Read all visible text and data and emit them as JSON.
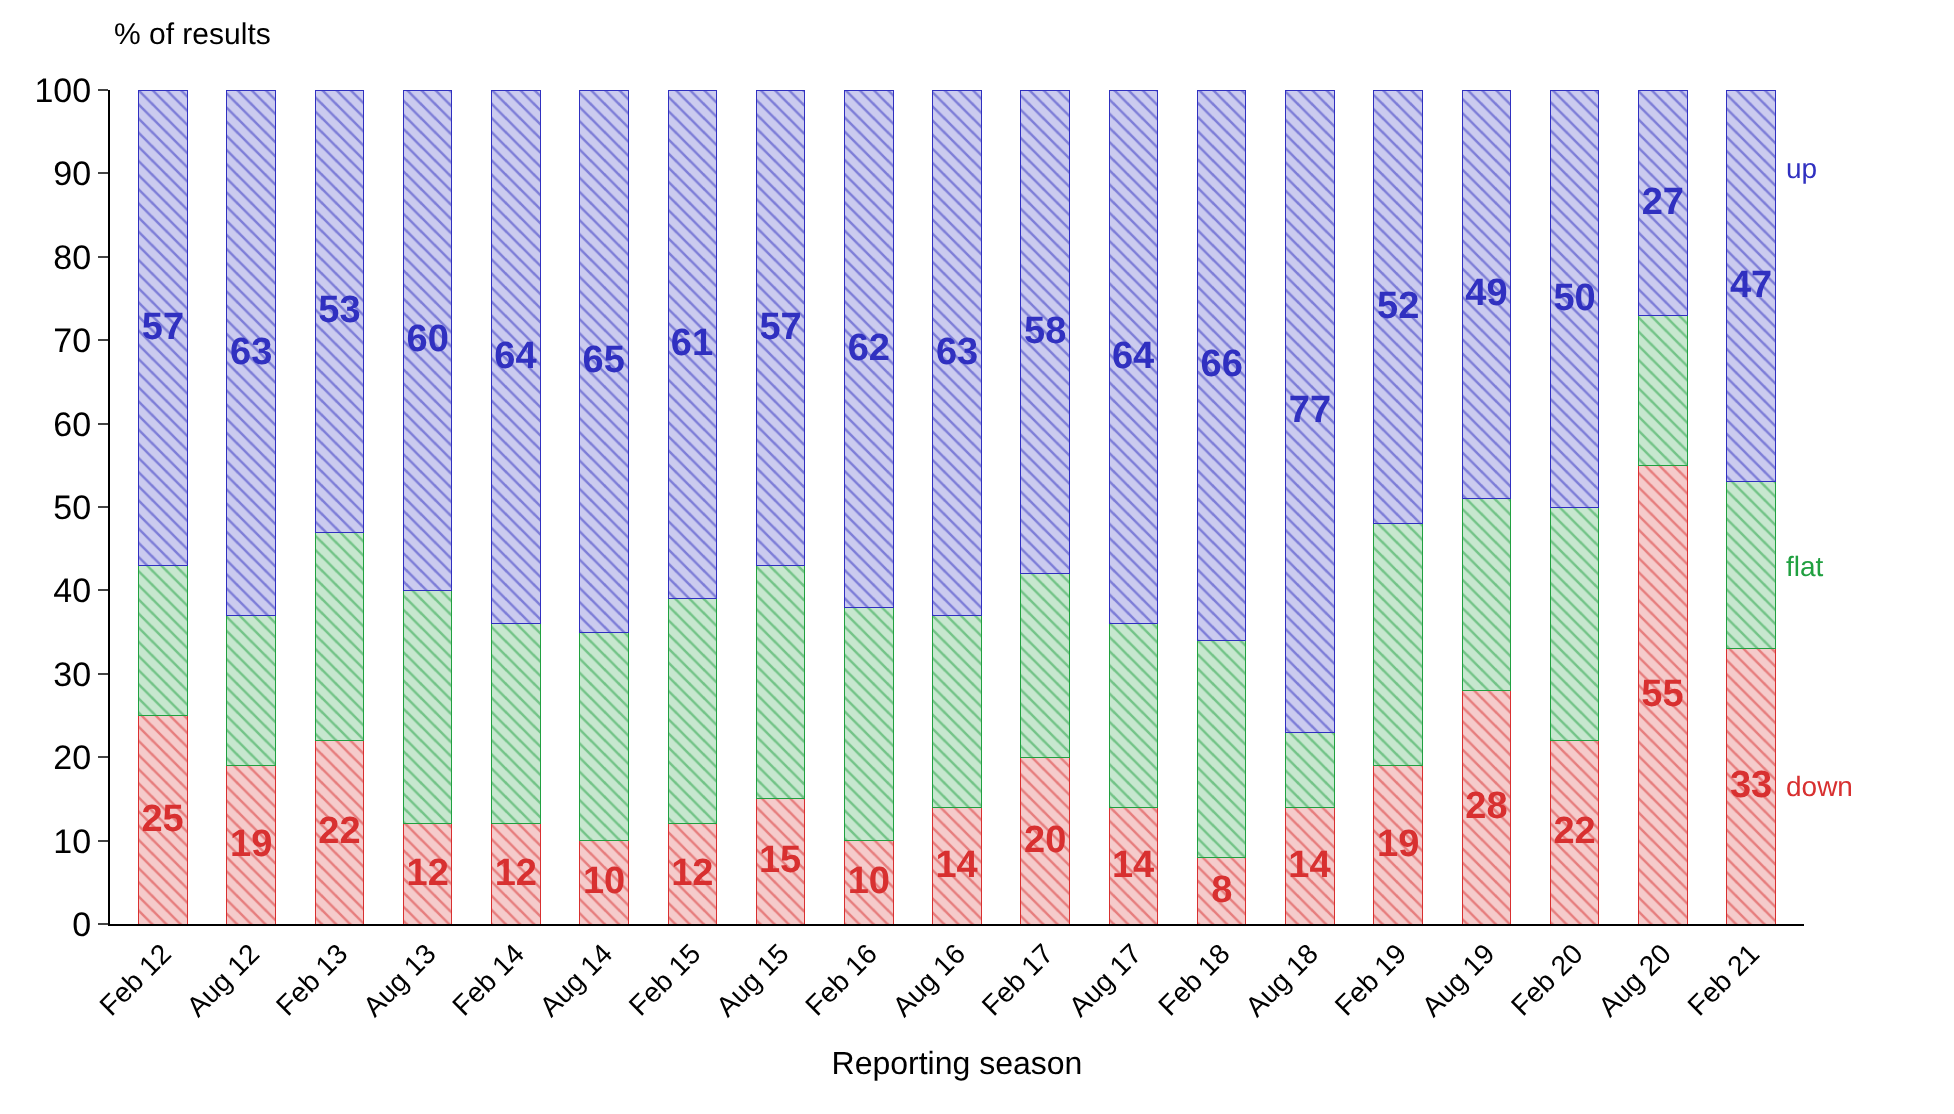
{
  "chart_data": {
    "type": "bar",
    "stacked": true,
    "ylabel": "% of results",
    "xlabel": "Reporting season",
    "categories": [
      "Feb 12",
      "Aug 12",
      "Feb 13",
      "Aug 13",
      "Feb 14",
      "Aug 14",
      "Feb 15",
      "Aug 15",
      "Feb 16",
      "Aug 16",
      "Feb 17",
      "Aug 17",
      "Feb 18",
      "Aug 18",
      "Feb 19",
      "Aug 19",
      "Feb 20",
      "Aug 20",
      "Feb 21"
    ],
    "series": [
      {
        "name": "down",
        "color": "#d83030",
        "values": [
          25,
          19,
          22,
          12,
          12,
          10,
          12,
          15,
          10,
          14,
          20,
          14,
          8,
          14,
          19,
          28,
          22,
          55,
          33
        ],
        "value_labels": [
          "25",
          "19",
          "22",
          "12",
          "12",
          "10",
          "12",
          "15",
          "10",
          "14",
          "20",
          "14",
          "8",
          "14",
          "19",
          "28",
          "22",
          "55",
          "33"
        ]
      },
      {
        "name": "flat",
        "color": "#20a040",
        "values": [
          18,
          18,
          25,
          28,
          24,
          25,
          27,
          28,
          28,
          23,
          22,
          22,
          26,
          9,
          29,
          23,
          28,
          18,
          20
        ]
      },
      {
        "name": "up",
        "color": "#3030c0",
        "values": [
          57,
          63,
          53,
          60,
          64,
          65,
          61,
          57,
          62,
          63,
          58,
          64,
          66,
          77,
          52,
          49,
          50,
          27,
          47
        ],
        "value_labels": [
          "57",
          "63",
          "53",
          "60",
          "64",
          "65",
          "61",
          "57",
          "62",
          "63",
          "58",
          "64",
          "66",
          "77",
          "52",
          "49",
          "50",
          "27",
          "47"
        ]
      }
    ],
    "ylim": [
      0,
      100
    ],
    "yticks": [
      0,
      10,
      20,
      30,
      40,
      50,
      60,
      70,
      80,
      90,
      100
    ],
    "legend": false
  }
}
